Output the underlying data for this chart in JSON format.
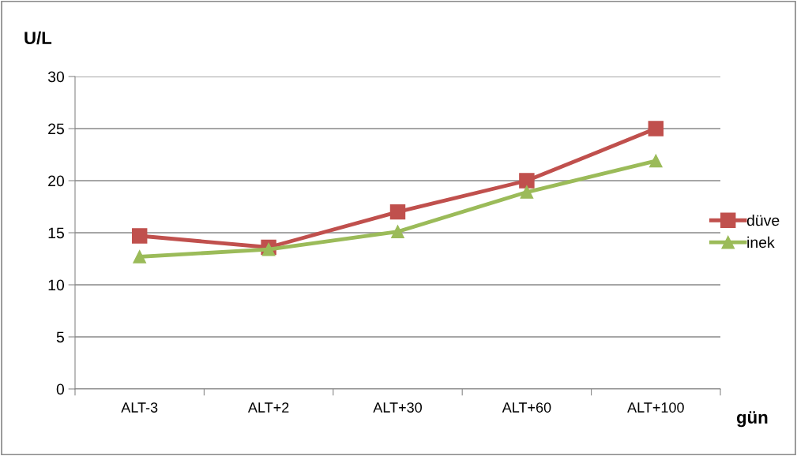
{
  "chart_data": {
    "type": "line",
    "ylabel": "U/L",
    "xlabel": "gün",
    "categories": [
      "ALT-3",
      "ALT+2",
      "ALT+30",
      "ALT+60",
      "ALT+100"
    ],
    "series": [
      {
        "name": "düve",
        "color": "#c0504d",
        "marker": "square",
        "values": [
          14.7,
          13.6,
          17.0,
          20.0,
          25.0
        ]
      },
      {
        "name": "inek",
        "color": "#9bbb59",
        "marker": "triangle",
        "values": [
          12.7,
          13.4,
          15.1,
          18.9,
          21.9
        ]
      }
    ],
    "ylim": [
      0,
      30
    ],
    "yticks": [
      0,
      5,
      10,
      15,
      20,
      25,
      30
    ],
    "grid": "y",
    "legend": "right",
    "line_style": "solid"
  }
}
